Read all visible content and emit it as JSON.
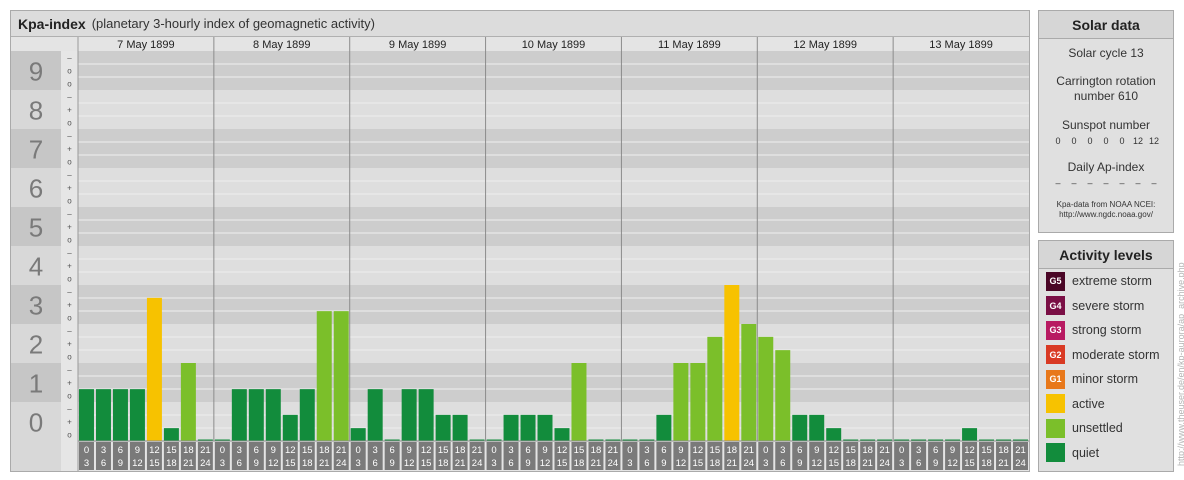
{
  "header": {
    "title": "Kpa-index",
    "subtitle": "(planetary 3-hourly index of geomagnetic activity)"
  },
  "chart_data": {
    "type": "bar",
    "title": "Kpa-index",
    "subtitle": "(planetary 3-hourly index of geomagnetic activity)",
    "ylim": [
      0,
      9
    ],
    "y_ticks": [
      "0",
      "1",
      "2",
      "3",
      "4",
      "5",
      "6",
      "7",
      "8",
      "9"
    ],
    "y_minor_ticks": [
      "o",
      "+",
      "–"
    ],
    "dates": [
      "7 May 1899",
      "8 May 1899",
      "9 May 1899",
      "10 May 1899",
      "11 May 1899",
      "12 May 1899",
      "13 May 1899"
    ],
    "interval_labels": [
      [
        "0",
        "3"
      ],
      [
        "3",
        "6"
      ],
      [
        "6",
        "9"
      ],
      [
        "9",
        "12"
      ],
      [
        "12",
        "15"
      ],
      [
        "15",
        "18"
      ],
      [
        "18",
        "21"
      ],
      [
        "21",
        "24"
      ]
    ],
    "values": [
      [
        1.33,
        1.33,
        1.33,
        1.33,
        3.67,
        0.33,
        2.0,
        0
      ],
      [
        0,
        1.33,
        1.33,
        1.33,
        0.67,
        1.33,
        3.33,
        3.33
      ],
      [
        0.33,
        1.33,
        0,
        1.33,
        1.33,
        0.67,
        0.67,
        0
      ],
      [
        0,
        0.67,
        0.67,
        0.67,
        0.33,
        2.0,
        0,
        0
      ],
      [
        0,
        0,
        0.67,
        2.0,
        2.0,
        2.67,
        4.0,
        3.0
      ],
      [
        2.67,
        2.33,
        0.67,
        0.67,
        0.33,
        0,
        0,
        0
      ],
      [
        0,
        0,
        0,
        0,
        0.33,
        0,
        0,
        0
      ]
    ],
    "grid": true
  },
  "colors": {
    "quiet": "#128c3c",
    "unsettled": "#7bbf2a",
    "active": "#f7c200",
    "g1": "#e8781a",
    "g2": "#d93a24",
    "g3": "#b81a62",
    "g4": "#7a0f45",
    "g5": "#4a0626"
  },
  "solar": {
    "title": "Solar data",
    "solar_cycle": "Solar cycle 13",
    "carrington": "Carrington rotation number 610",
    "sunspot_label": "Sunspot number",
    "sunspot_values": [
      "0",
      "0",
      "0",
      "0",
      "0",
      "12",
      "12"
    ],
    "ap_label": "Daily Ap-index",
    "ap_values": [
      "–",
      "–",
      "–",
      "–",
      "–",
      "–",
      "–"
    ],
    "source_line1": "Kpa-data from NOAA NCEI:",
    "source_line2": "http://www.ngdc.noaa.gov/"
  },
  "activity": {
    "title": "Activity levels",
    "levels": [
      {
        "badge": "G5",
        "label": "extreme storm",
        "color": "#4a0626"
      },
      {
        "badge": "G4",
        "label": "severe storm",
        "color": "#7a0f45"
      },
      {
        "badge": "G3",
        "label": "strong storm",
        "color": "#b81a62"
      },
      {
        "badge": "G2",
        "label": "moderate storm",
        "color": "#d93a24"
      },
      {
        "badge": "G1",
        "label": "minor storm",
        "color": "#e8781a"
      },
      {
        "badge": "",
        "label": "active",
        "color": "#f7c200"
      },
      {
        "badge": "",
        "label": "unsettled",
        "color": "#7bbf2a"
      },
      {
        "badge": "",
        "label": "quiet",
        "color": "#128c3c"
      }
    ]
  },
  "watermark": "http://www.theuser.de/en/kp-aurora/ap_archive.php"
}
